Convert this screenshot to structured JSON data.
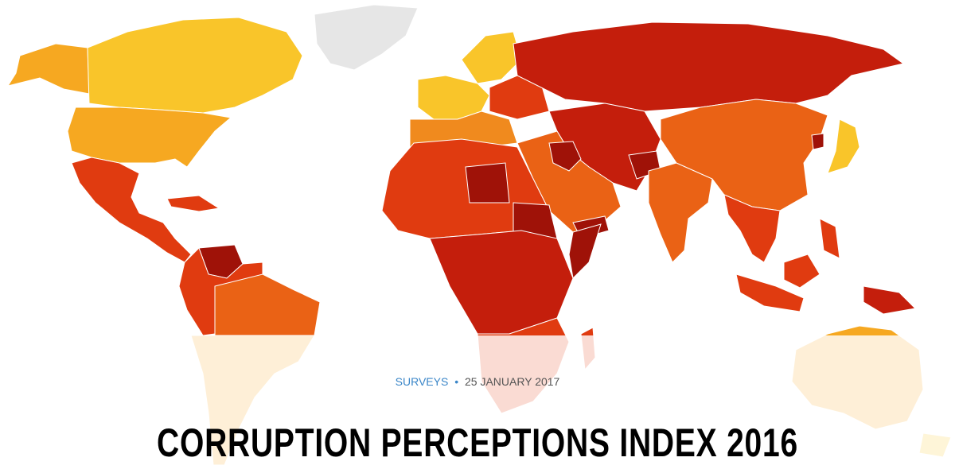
{
  "header": {
    "category": "SURVEYS",
    "separator": "•",
    "date": "25 JANUARY 2017",
    "title": "CORRUPTION PERCEPTIONS INDEX 2016"
  },
  "colors": {
    "very_clean": "#fde9b0",
    "clean": "#f9c52a",
    "moderately_clean": "#f6a821",
    "middle": "#f08a1e",
    "moderate": "#ea6215",
    "corrupt": "#e03b10",
    "highly_corrupt": "#c41e0c",
    "very_highly_corrupt": "#9f1208",
    "no_data": "#e6e6e6"
  }
}
